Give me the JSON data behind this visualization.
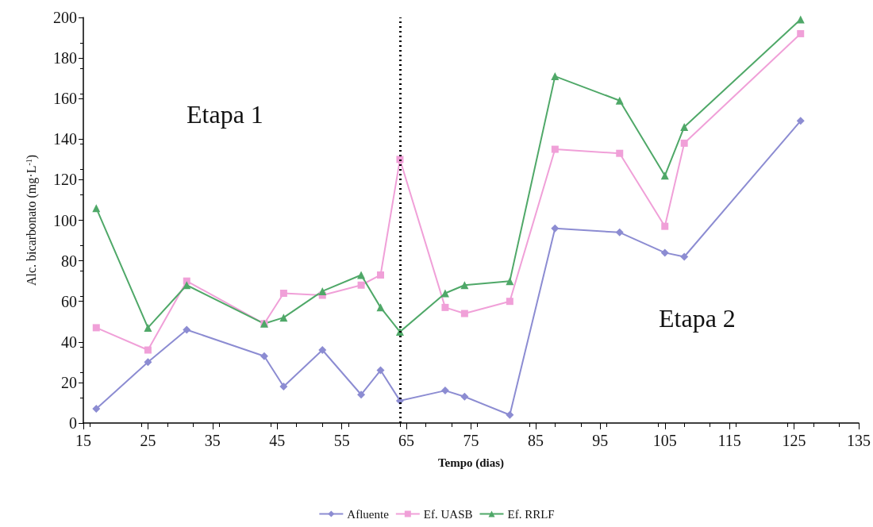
{
  "chart_data": {
    "type": "line",
    "xlabel": "Tempo (dias)",
    "ylabel": "Alc. bicarbonato (mg·L$^{-1}$)",
    "x": [
      17,
      25,
      31,
      43,
      46,
      52,
      58,
      61,
      64,
      71,
      74,
      81,
      88,
      98,
      105,
      108,
      126
    ],
    "series": [
      {
        "name": "Afluente",
        "color": "#8c8cd2",
        "marker": "diamond",
        "values": [
          7,
          30,
          46,
          33,
          18,
          36,
          14,
          26,
          11,
          16,
          13,
          4,
          96,
          94,
          84,
          82,
          149
        ]
      },
      {
        "name": "Ef. UASB",
        "color": "#f0a0d8",
        "marker": "square",
        "values": [
          47,
          36,
          70,
          49,
          64,
          63,
          68,
          73,
          130,
          57,
          54,
          60,
          135,
          133,
          97,
          138,
          192
        ]
      },
      {
        "name": "Ef. RRLF",
        "color": "#4fa868",
        "marker": "triangle",
        "values": [
          106,
          47,
          68,
          49,
          52,
          65,
          73,
          57,
          45,
          64,
          68,
          70,
          171,
          159,
          122,
          146,
          199
        ]
      }
    ],
    "xlim": [
      15,
      135
    ],
    "xticks": [
      15,
      25,
      35,
      45,
      55,
      65,
      75,
      85,
      95,
      105,
      115,
      125,
      135
    ],
    "ylim": [
      0,
      200
    ],
    "yticks": [
      0,
      20,
      40,
      60,
      80,
      100,
      120,
      140,
      160,
      180,
      200
    ],
    "ref_lines": [
      {
        "axis": "x",
        "value": 64,
        "color": "#000000",
        "line_style": "dotted"
      }
    ],
    "annotations": [
      "Etapa 1",
      "Etapa 2"
    ],
    "grid": false,
    "legend": "bottom"
  }
}
